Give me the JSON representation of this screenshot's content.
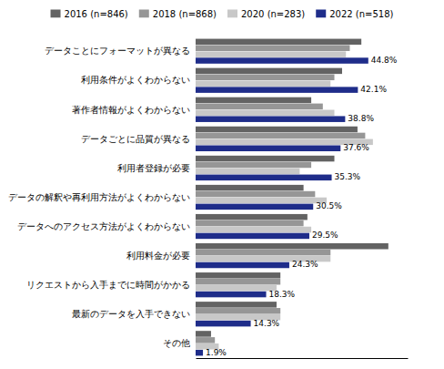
{
  "chart_data": {
    "type": "bar",
    "orientation": "horizontal",
    "categories": [
      "データことにフォーマットが異なる",
      "利用条件がよくわからない",
      "著作者情報がよくわからない",
      "データごとに品質が異なる",
      "利用者登録が必要",
      "データの解釈や再利用方法がよくわからない",
      "データへのアクセス方法がよくわからない",
      "利用料金が必要",
      "リクエストから入手までに時間がかかる",
      "最新のデータを入手できない",
      "その他"
    ],
    "series": [
      {
        "name": "2016 (n=846)",
        "color": "#636363",
        "values": [
          43.0,
          38.0,
          30.0,
          42.0,
          36.0,
          28.0,
          29.0,
          50.0,
          22.0,
          21.0,
          4.0
        ]
      },
      {
        "name": "2018 (n=868)",
        "color": "#969696",
        "values": [
          40.0,
          36.0,
          33.0,
          44.0,
          30.0,
          31.0,
          28.0,
          35.0,
          22.0,
          22.0,
          5.0
        ]
      },
      {
        "name": "2020 (n=283)",
        "color": "#c8c8c8",
        "values": [
          39.0,
          35.0,
          36.0,
          46.0,
          27.0,
          34.0,
          30.0,
          35.0,
          21.0,
          22.0,
          6.0
        ]
      },
      {
        "name": "2022 (n=518)",
        "color": "#1f2d8a",
        "values": [
          44.8,
          42.1,
          38.8,
          37.6,
          35.3,
          30.5,
          29.5,
          24.3,
          18.3,
          14.3,
          1.9
        ],
        "value_labels": [
          "44.8%",
          "42.1%",
          "38.8%",
          "37.6%",
          "35.3%",
          "30.5%",
          "29.5%",
          "24.3%",
          "18.3%",
          "14.3%",
          "1.9%"
        ]
      }
    ],
    "xlim": [
      0,
      55
    ],
    "xticks": [],
    "tick_labels": "y",
    "legend": "top"
  }
}
